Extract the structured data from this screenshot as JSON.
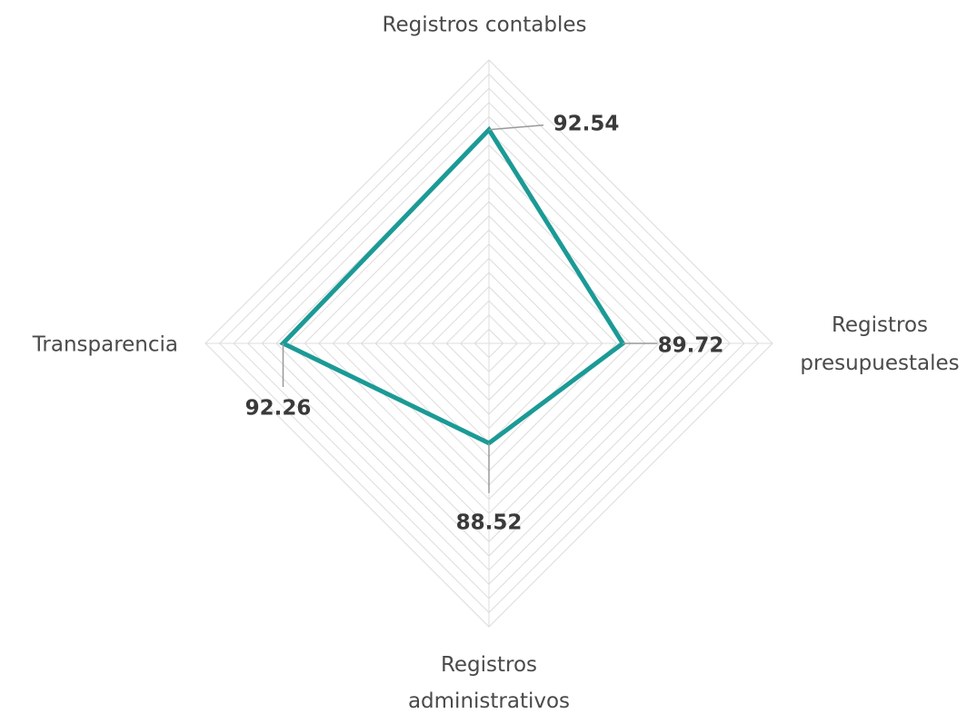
{
  "chart_data": {
    "type": "radar",
    "categories": [
      "Registros contables",
      "Registros presupuestales",
      "Registros administrativos",
      "Transparencia"
    ],
    "values": [
      92.54,
      89.72,
      88.52,
      92.26
    ],
    "color": "#1b9a96",
    "rlim": [
      85,
      95
    ],
    "rticks": [
      85,
      85.5,
      86,
      86.5,
      87,
      87.5,
      88,
      88.5,
      89,
      89.5,
      90,
      90.5,
      91,
      91.5,
      92,
      92.5,
      93,
      93.5,
      94,
      94.5,
      95
    ],
    "grid": true
  }
}
